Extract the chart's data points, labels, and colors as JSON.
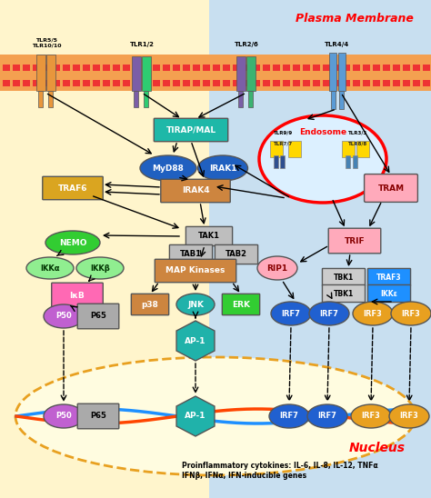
{
  "plasma_membrane_label": "Plasma Membrane",
  "nucleus_label": "Nucleus",
  "endosome_label": "Endosome",
  "bg_left_color": "#FFF5CC",
  "bg_right_color": "#C8DFF0",
  "bottom_text": "Proinflammatory cytokines: IL-6, IL-8, IL-12, TNFα\nIFNβ, IFNα, IFN-inducible genes"
}
